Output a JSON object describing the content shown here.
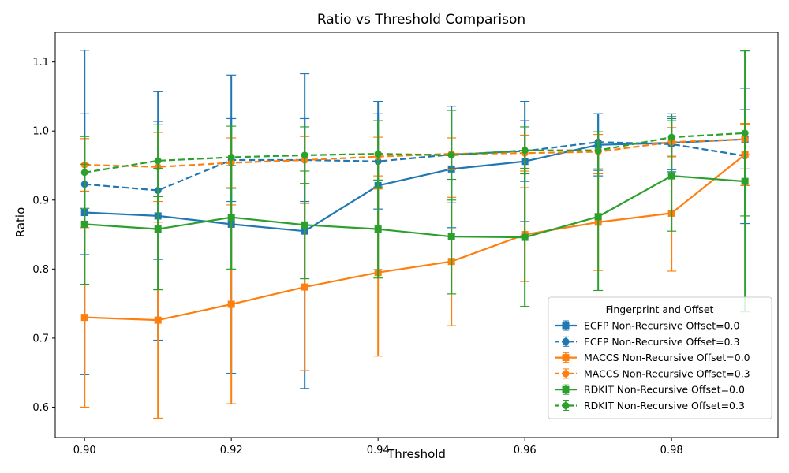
{
  "chart_data": {
    "type": "line",
    "title": "Ratio vs Threshold Comparison",
    "xlabel": "Threshold",
    "ylabel": "Ratio",
    "xlim": [
      0.896,
      0.9945
    ],
    "ylim": [
      0.556,
      1.143
    ],
    "x_ticks": [
      0.9,
      0.92,
      0.94,
      0.96,
      0.98
    ],
    "x_tick_labels": [
      "0.90",
      "0.92",
      "0.94",
      "0.96",
      "0.98"
    ],
    "y_ticks": [
      0.6,
      0.7,
      0.8,
      0.9,
      1.0,
      1.1
    ],
    "y_tick_labels": [
      "0.6",
      "0.7",
      "0.8",
      "0.9",
      "1.0",
      "1.1"
    ],
    "grid": false,
    "legend_title": "Fingerprint and Offset",
    "legend_position": "bottom-right",
    "x": [
      0.9,
      0.91,
      0.92,
      0.93,
      0.94,
      0.95,
      0.96,
      0.97,
      0.98,
      0.99
    ],
    "series": [
      {
        "name": "ECFP Non-Recursive Offset=0.0",
        "color": "#1f77b4",
        "dashed": false,
        "marker": "square",
        "values": [
          0.882,
          0.877,
          0.865,
          0.855,
          0.921,
          0.945,
          0.956,
          0.98,
          0.983,
          0.988
        ],
        "errors": [
          0.235,
          0.18,
          0.216,
          0.228,
          0.122,
          0.085,
          0.087,
          0.045,
          0.042,
          0.043
        ]
      },
      {
        "name": "ECFP Non-Recursive Offset=0.3",
        "color": "#1f77b4",
        "dashed": true,
        "marker": "circle",
        "values": [
          0.923,
          0.914,
          0.958,
          0.958,
          0.956,
          0.966,
          0.971,
          0.984,
          0.981,
          0.964
        ],
        "errors": [
          0.102,
          0.1,
          0.06,
          0.06,
          0.069,
          0.07,
          0.044,
          0.041,
          0.037,
          0.098
        ]
      },
      {
        "name": "MACCS Non-Recursive Offset=0.0",
        "color": "#ff7f0e",
        "dashed": false,
        "marker": "square",
        "values": [
          0.73,
          0.726,
          0.749,
          0.774,
          0.795,
          0.811,
          0.85,
          0.868,
          0.881,
          0.966
        ],
        "errors": [
          0.13,
          0.142,
          0.144,
          0.121,
          0.121,
          0.093,
          0.068,
          0.07,
          0.084,
          0.045
        ]
      },
      {
        "name": "MACCS Non-Recursive Offset=0.3",
        "color": "#ff7f0e",
        "dashed": true,
        "marker": "circle",
        "values": [
          0.951,
          0.948,
          0.954,
          0.958,
          0.963,
          0.967,
          0.968,
          0.97,
          0.984,
          0.988
        ],
        "errors": [
          0.038,
          0.05,
          0.036,
          0.034,
          0.028,
          0.023,
          0.026,
          0.025,
          0.021,
          0.022
        ]
      },
      {
        "name": "RDKIT Non-Recursive Offset=0.0",
        "color": "#2ca02c",
        "dashed": false,
        "marker": "square",
        "values": [
          0.865,
          0.858,
          0.875,
          0.864,
          0.858,
          0.847,
          0.846,
          0.876,
          0.935,
          0.927
        ],
        "errors": [
          0.087,
          0.088,
          0.075,
          0.078,
          0.071,
          0.083,
          0.1,
          0.107,
          0.08,
          0.189
        ]
      },
      {
        "name": "RDKIT Non-Recursive Offset=0.3",
        "color": "#2ca02c",
        "dashed": true,
        "marker": "circle",
        "values": [
          0.94,
          0.957,
          0.962,
          0.965,
          0.967,
          0.965,
          0.972,
          0.972,
          0.991,
          0.997
        ],
        "errors": [
          0.052,
          0.052,
          0.045,
          0.041,
          0.048,
          0.065,
          0.034,
          0.027,
          0.03,
          0.12
        ]
      }
    ]
  }
}
